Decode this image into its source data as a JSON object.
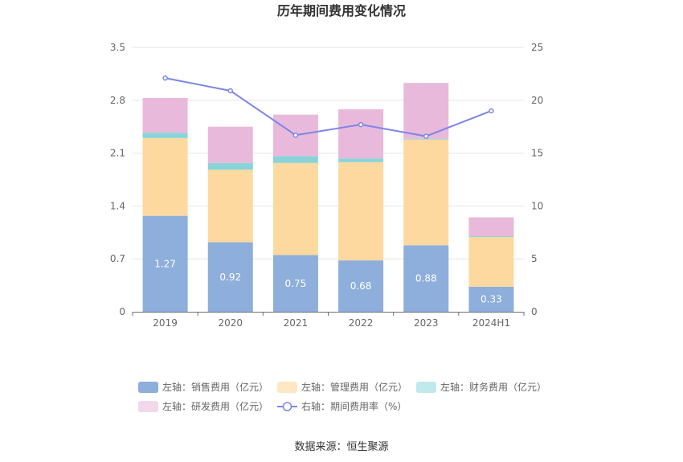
{
  "chart_data": {
    "type": "bar",
    "title": "历年期间费用变化情况",
    "categories": [
      "2019",
      "2020",
      "2021",
      "2022",
      "2023",
      "2024H1"
    ],
    "series": [
      {
        "name": "左轴：销售费用（亿元）",
        "type": "bar",
        "axis": "left",
        "stack": true,
        "color": "#8eaedb",
        "values": [
          1.27,
          0.92,
          0.75,
          0.68,
          0.88,
          0.33
        ],
        "show_labels": true
      },
      {
        "name": "左轴：管理费用（亿元）",
        "type": "bar",
        "axis": "left",
        "stack": true,
        "color": "#fdd9a0",
        "values": [
          1.03,
          0.96,
          1.22,
          1.3,
          1.4,
          0.66
        ]
      },
      {
        "name": "左轴：财务费用（亿元）",
        "type": "bar",
        "axis": "left",
        "stack": true,
        "color": "#88d4d8",
        "values": [
          0.07,
          0.09,
          0.09,
          0.05,
          0.01,
          0.01
        ]
      },
      {
        "name": "左轴：研发费用（亿元）",
        "type": "bar",
        "axis": "left",
        "stack": true,
        "color": "#e8b9da",
        "values": [
          0.46,
          0.48,
          0.55,
          0.65,
          0.74,
          0.25
        ]
      },
      {
        "name": "右轴：期间费用率（%）",
        "type": "line",
        "axis": "right",
        "color": "#7b86e8",
        "values": [
          22.1,
          20.9,
          16.7,
          17.7,
          16.6,
          19.0
        ]
      }
    ],
    "y_left": {
      "ticks": [
        "0",
        "0.7",
        "1.4",
        "2.1",
        "2.8",
        "3.5"
      ],
      "range": [
        0,
        3.5
      ]
    },
    "y_right": {
      "ticks": [
        "0",
        "5",
        "10",
        "15",
        "20",
        "25"
      ],
      "range": [
        0,
        25
      ]
    },
    "grid": true,
    "legend_position": "bottom",
    "legend_colors": [
      "#8eaedb",
      "#fde8c2",
      "#bfe9ec",
      "#f3d7eb",
      "#7b86e8"
    ]
  },
  "source": "数据来源：恒生聚源"
}
